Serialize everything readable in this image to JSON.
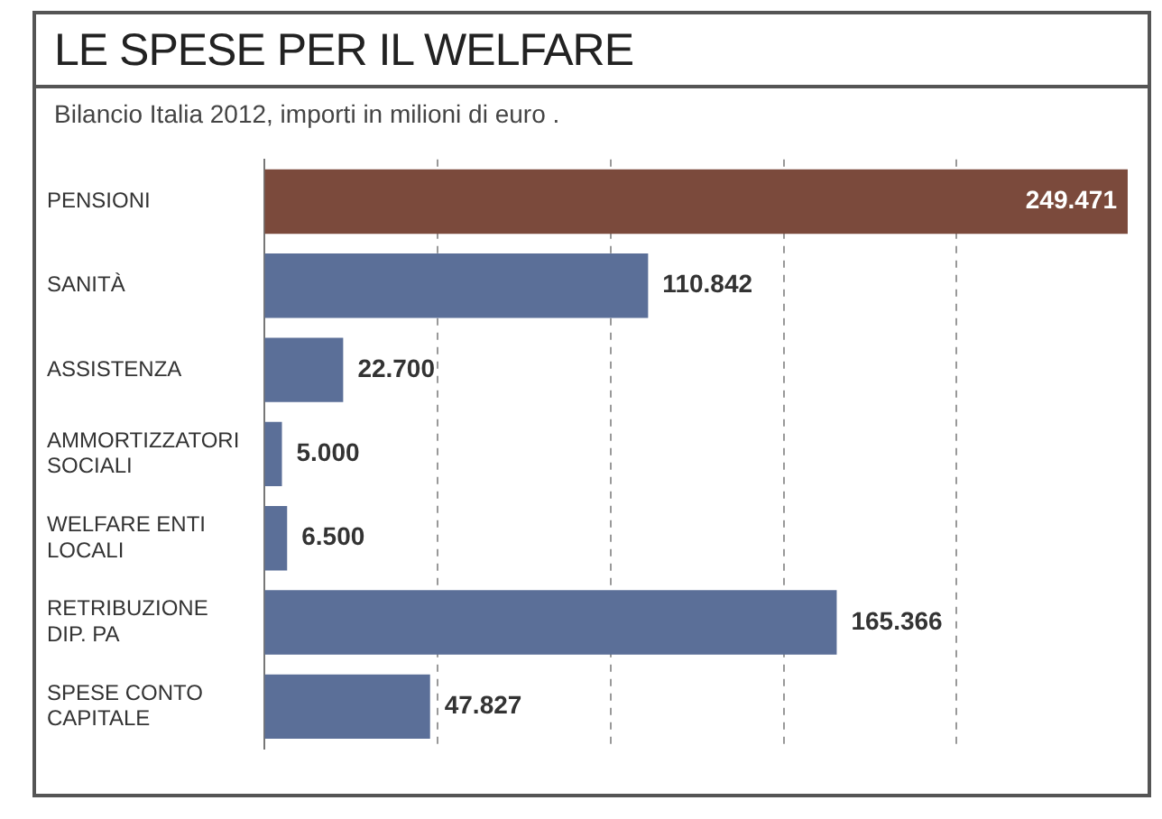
{
  "chart_data": {
    "type": "bar",
    "orientation": "horizontal",
    "title": "LE SPESE PER IL WELFARE",
    "subtitle": "Bilancio Italia 2012, importi in milioni di euro .",
    "categories": [
      "PENSIONI",
      "SANITÀ",
      "ASSISTENZA",
      "AMMORTIZZATORI SOCIALI",
      "WELFARE ENTI LOCALI",
      "RETRIBUZIONE DIP. PA",
      "SPESE CONTO CAPITALE"
    ],
    "values": [
      249471,
      110842,
      22700,
      5000,
      6500,
      165366,
      47827
    ],
    "colors": [
      "#7b4a3c",
      "#5b6f98",
      "#5b6f98",
      "#5b6f98",
      "#5b6f98",
      "#5b6f98",
      "#5b6f98"
    ],
    "value_labels": [
      "249.471",
      "110.842",
      "22.700",
      "5.000",
      "6.500",
      "165.366",
      "47.827"
    ],
    "xticks": [
      {
        "value": 50000,
        "label": null
      },
      {
        "value": 100000,
        "label": null
      },
      {
        "value": 150000,
        "label": null
      },
      {
        "value": 200000,
        "label": null
      }
    ],
    "grid": "x",
    "tick_labels": "y",
    "legend": false
  }
}
